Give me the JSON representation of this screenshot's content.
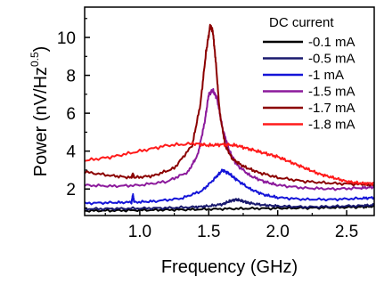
{
  "chart_data": {
    "type": "line",
    "title": "",
    "xlabel": "Frequency (GHz)",
    "ylabel_main": "Power (nV/Hz",
    "ylabel_sup": "0.5",
    "ylabel_close": ")",
    "xlim": [
      0.6,
      2.7
    ],
    "ylim": [
      0.6,
      11.6
    ],
    "xticks": [
      1.0,
      1.5,
      2.0,
      2.5
    ],
    "xtick_labels": [
      "1.0",
      "1.5",
      "2.0",
      "2.5"
    ],
    "yticks": [
      2,
      4,
      6,
      8,
      10
    ],
    "ytick_labels": [
      "2",
      "4",
      "6",
      "8",
      "10"
    ],
    "legend_title": "DC current",
    "legend_position": "top-right",
    "series": [
      {
        "name": "-0.1 mA",
        "color": "#000000",
        "x": [
          0.6,
          0.8,
          1.0,
          1.2,
          1.4,
          1.6,
          1.8,
          2.0,
          2.2,
          2.4,
          2.6,
          2.7
        ],
        "y": [
          0.85,
          0.86,
          0.88,
          0.9,
          0.92,
          0.95,
          0.97,
          0.98,
          1.0,
          1.02,
          1.05,
          1.08
        ]
      },
      {
        "name": "-0.5 mA",
        "color": "#1a1a6e",
        "x": [
          0.6,
          0.8,
          1.0,
          1.2,
          1.4,
          1.5,
          1.6,
          1.65,
          1.7,
          1.75,
          1.8,
          1.9,
          2.0,
          2.2,
          2.4,
          2.6,
          2.7
        ],
        "y": [
          0.95,
          0.96,
          0.98,
          1.0,
          1.05,
          1.1,
          1.2,
          1.35,
          1.45,
          1.35,
          1.25,
          1.15,
          1.1,
          1.05,
          1.08,
          1.12,
          1.15
        ]
      },
      {
        "name": "-1 mA",
        "color": "#1414d8",
        "x": [
          0.6,
          0.8,
          0.94,
          0.95,
          0.96,
          1.1,
          1.3,
          1.45,
          1.55,
          1.6,
          1.65,
          1.7,
          1.8,
          1.9,
          2.0,
          2.2,
          2.4,
          2.6,
          2.7
        ],
        "y": [
          1.25,
          1.28,
          1.3,
          1.7,
          1.3,
          1.35,
          1.5,
          1.9,
          2.6,
          3.0,
          2.8,
          2.5,
          2.0,
          1.7,
          1.55,
          1.45,
          1.45,
          1.5,
          1.55
        ],
        "spike": true
      },
      {
        "name": "-1.5 mA",
        "color": "#8c1a9c",
        "x": [
          0.6,
          0.8,
          1.0,
          1.2,
          1.35,
          1.42,
          1.47,
          1.5,
          1.53,
          1.56,
          1.6,
          1.65,
          1.7,
          1.8,
          1.9,
          2.0,
          2.2,
          2.4,
          2.6,
          2.7
        ],
        "y": [
          2.2,
          2.15,
          2.2,
          2.4,
          2.9,
          3.8,
          5.5,
          7.0,
          7.2,
          6.8,
          5.2,
          4.0,
          3.3,
          2.7,
          2.4,
          2.2,
          2.05,
          2.0,
          2.05,
          2.1
        ]
      },
      {
        "name": "-1.7 mA",
        "color": "#8b0000",
        "x": [
          0.6,
          0.8,
          0.94,
          0.95,
          0.96,
          1.1,
          1.25,
          1.38,
          1.44,
          1.48,
          1.51,
          1.53,
          1.55,
          1.58,
          1.62,
          1.67,
          1.75,
          1.85,
          2.0,
          2.2,
          2.4,
          2.6,
          2.7
        ],
        "y": [
          2.9,
          2.7,
          2.6,
          2.8,
          2.6,
          2.7,
          3.1,
          4.3,
          6.5,
          9.2,
          10.6,
          10.3,
          8.8,
          6.0,
          4.3,
          3.6,
          3.2,
          2.9,
          2.6,
          2.4,
          2.3,
          2.25,
          2.2
        ]
      },
      {
        "name": "-1.8 mA",
        "color": "#ff1a1a",
        "x": [
          0.6,
          0.8,
          1.0,
          1.2,
          1.4,
          1.5,
          1.6,
          1.7,
          1.8,
          1.9,
          2.0,
          2.1,
          2.2,
          2.3,
          2.4,
          2.5,
          2.6,
          2.7
        ],
        "y": [
          3.5,
          3.7,
          4.0,
          4.3,
          4.4,
          4.3,
          4.35,
          4.3,
          4.1,
          3.9,
          3.7,
          3.4,
          3.1,
          2.8,
          2.6,
          2.4,
          2.3,
          2.3
        ]
      }
    ]
  }
}
